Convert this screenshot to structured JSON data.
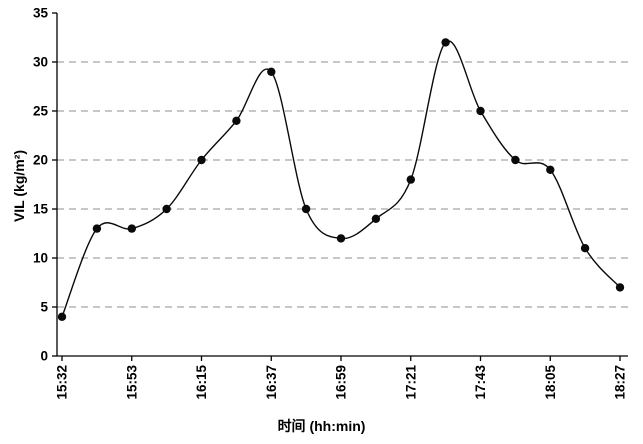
{
  "chart_data": {
    "type": "line",
    "title": "",
    "ylabel": "VIL (kg/m²)",
    "xlabel": "时间  (hh:min)",
    "ylim": [
      0,
      35
    ],
    "yticks": [
      0,
      5,
      10,
      15,
      20,
      25,
      30,
      35
    ],
    "x_tick_labels": [
      "15:32",
      "15:53",
      "16:15",
      "16:37",
      "16:59",
      "17:21",
      "17:43",
      "18:05",
      "18:27"
    ],
    "x_tick_point_indices": [
      0,
      2,
      4,
      6,
      8,
      10,
      12,
      14,
      16
    ],
    "series": [
      {
        "name": "VIL",
        "values": [
          4,
          13,
          13,
          15,
          20,
          24,
          29,
          15,
          12,
          14,
          18,
          32,
          25,
          20,
          19,
          11,
          7
        ]
      }
    ],
    "grid": "horizontal-dashed",
    "legend": "none",
    "line_color": "#0a0a0a",
    "marker": "filled-circle",
    "marker_color": "#0a0a0a"
  }
}
